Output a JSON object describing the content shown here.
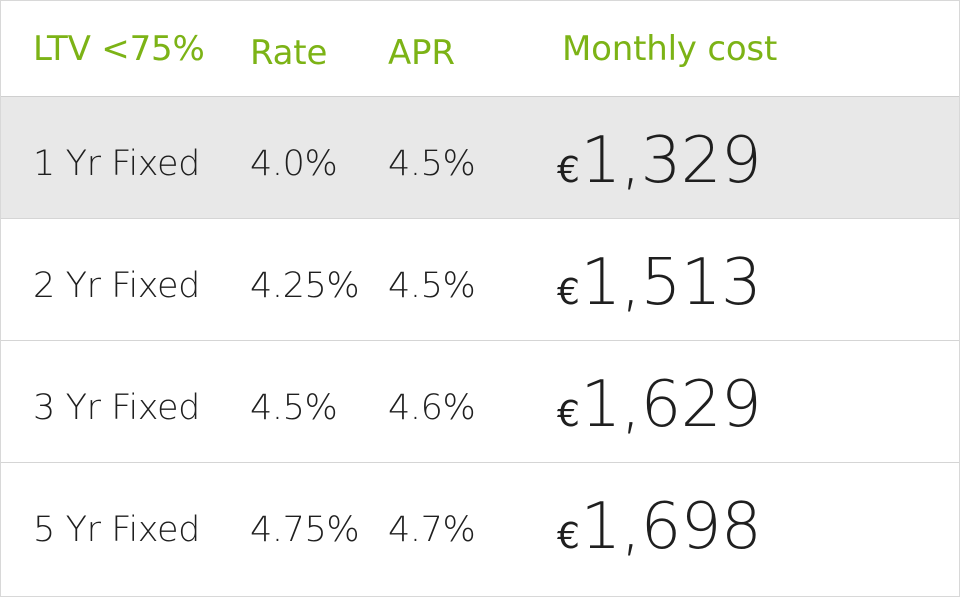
{
  "table": {
    "headers": [
      "LTV <75%",
      "Rate",
      "APR",
      "Monthly cost"
    ],
    "rows": [
      {
        "term": "1 Yr Fixed",
        "rate": "4.0%",
        "apr": "4.5%",
        "currency": "€",
        "monthly_cost": "1,329",
        "selected": true
      },
      {
        "term": "2 Yr Fixed",
        "rate": "4.25%",
        "apr": "4.5%",
        "currency": "€",
        "monthly_cost": "1,513",
        "selected": false
      },
      {
        "term": "3 Yr Fixed",
        "rate": "4.5%",
        "apr": "4.6%",
        "currency": "€",
        "monthly_cost": "1,629",
        "selected": false
      },
      {
        "term": "5 Yr Fixed",
        "rate": "4.75%",
        "apr": "4.7%",
        "currency": "€",
        "monthly_cost": "1,698",
        "selected": false
      }
    ]
  },
  "colors": {
    "header_text": "#7cb316",
    "body_text": "#1f1f1f",
    "selected_row_bg": "#e8e8e8",
    "grid_line": "#d5d5d5"
  }
}
